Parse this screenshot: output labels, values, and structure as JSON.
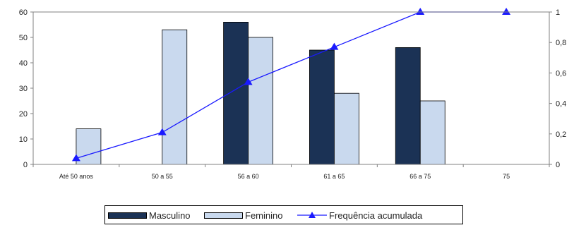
{
  "chart_data": {
    "type": "bar",
    "categories": [
      "Até 50 anos",
      "50 a 55",
      "56 a 60",
      "61 a 65",
      "66 a 75",
      "75"
    ],
    "series": [
      {
        "name": "Masculino",
        "type": "bar",
        "axis": "left",
        "values": [
          0,
          0,
          56,
          45,
          46,
          0
        ]
      },
      {
        "name": "Feminino",
        "type": "bar",
        "axis": "left",
        "values": [
          14,
          53,
          50,
          28,
          25,
          0
        ]
      },
      {
        "name": "Frequência acumulada",
        "type": "line",
        "marker": "triangle",
        "axis": "right",
        "values": [
          0.04,
          0.21,
          0.54,
          0.77,
          1,
          1
        ]
      }
    ],
    "y_left": {
      "min": 0,
      "max": 60,
      "ticks": [
        "0",
        "10",
        "20",
        "30",
        "40",
        "50",
        "60"
      ]
    },
    "y_right": {
      "min": 0,
      "max": 1,
      "ticks": [
        "0",
        "0,2",
        "0,4",
        "0,6",
        "0,8",
        "1"
      ]
    },
    "legend_position": "bottom",
    "colors": {
      "masculino": "#1b3255",
      "feminino": "#c9d9ee",
      "line": "#1a1aff",
      "axis": "#808080"
    }
  },
  "legend": {
    "items": [
      "Masculino",
      "Feminino",
      "Frequência acumulada"
    ]
  }
}
